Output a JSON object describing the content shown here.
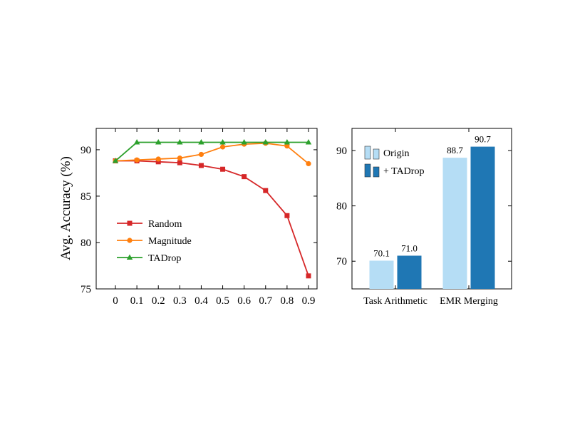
{
  "chart_data": [
    {
      "type": "line",
      "title": "",
      "xlabel": "",
      "ylabel": "Avg. Accuracy (%)",
      "x": [
        0,
        0.1,
        0.2,
        0.3,
        0.4,
        0.5,
        0.6,
        0.7,
        0.8,
        0.9
      ],
      "xticks": [
        "0",
        "0.1",
        "0.2",
        "0.3",
        "0.4",
        "0.5",
        "0.6",
        "0.7",
        "0.8",
        "0.9"
      ],
      "yticks": [
        "75",
        "80",
        "85",
        "90"
      ],
      "ylim": [
        75,
        92.3
      ],
      "grid": false,
      "legend_position": "bottom-left",
      "series": [
        {
          "name": "Random",
          "color": "#d62728",
          "marker": "square",
          "values": [
            88.8,
            88.8,
            88.7,
            88.6,
            88.3,
            87.9,
            87.1,
            85.6,
            82.9,
            76.4
          ]
        },
        {
          "name": "Magnitude",
          "color": "#ff7f0e",
          "marker": "circle",
          "values": [
            88.8,
            88.9,
            89.0,
            89.1,
            89.5,
            90.3,
            90.6,
            90.7,
            90.4,
            88.5
          ]
        },
        {
          "name": "TADrop",
          "color": "#2ca02c",
          "marker": "triangle",
          "values": [
            88.8,
            90.8,
            90.8,
            90.8,
            90.8,
            90.8,
            90.8,
            90.8,
            90.8,
            90.8
          ]
        }
      ]
    },
    {
      "type": "bar",
      "title": "",
      "xlabel": "",
      "ylabel": "",
      "categories": [
        "Task Arithmetic",
        "EMR Merging"
      ],
      "yticks": [
        "70",
        "80",
        "90"
      ],
      "ylim": [
        65,
        94
      ],
      "grid": false,
      "legend_position": "top-left",
      "series": [
        {
          "name": "Origin",
          "color": "#b5ddf5",
          "values": [
            70.1,
            88.7
          ],
          "labels": [
            "70.1",
            "88.7"
          ]
        },
        {
          "name": "+ TADrop",
          "color": "#1f77b4",
          "values": [
            71.0,
            90.7
          ],
          "labels": [
            "71.0",
            "90.7"
          ]
        }
      ]
    }
  ]
}
